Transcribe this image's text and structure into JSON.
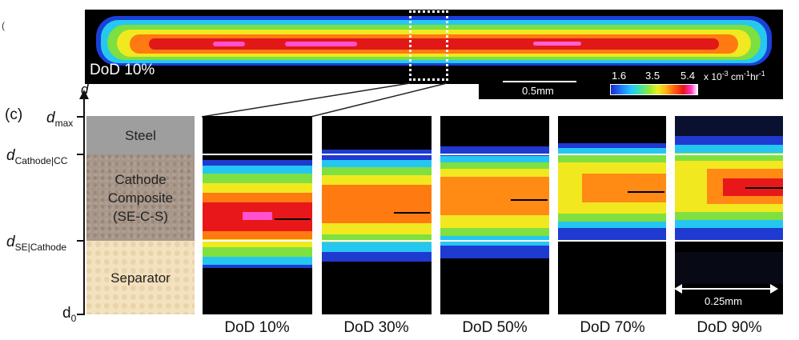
{
  "overview": {
    "label": "DoD 10%",
    "scalebar_label": "0.5mm",
    "colorbar": {
      "ticks": [
        "1.6",
        "3.5",
        "5.4"
      ],
      "units_prefix": "x 10",
      "units_exp": "-3",
      "units_mid": " cm",
      "units_exp2": "-1",
      "units_mid2": "hr",
      "units_exp3": "-1"
    }
  },
  "corner_glyph": "(",
  "panel_letter": "(c)",
  "axis": {
    "variable": "d",
    "labels": [
      {
        "base": "d",
        "sub": "max"
      },
      {
        "base": "d",
        "sub": "Cathode|CC"
      },
      {
        "base": "d",
        "sub": "SE|Cathode"
      },
      {
        "base": "d",
        "sub": "0"
      }
    ]
  },
  "schematic": {
    "steel": "Steel",
    "cathode_line1": "Cathode",
    "cathode_line2": "Composite",
    "cathode_line3": "(SE-C-S)",
    "separator": "Separator"
  },
  "panels": [
    "DoD 10%",
    "DoD 30%",
    "DoD 50%",
    "DoD 70%",
    "DoD 90%"
  ],
  "panel_scalebar_label": "0.25mm",
  "colors": {
    "background": "#000000",
    "steel": "#9e9e9e",
    "cathode": "#a7968a",
    "separator": "#f3e2bf",
    "colormap": [
      "#1a2cc8",
      "#22c8ff",
      "#8de83a",
      "#e8f020",
      "#ff5a0c",
      "#e8141a",
      "#ff3cc8"
    ]
  }
}
